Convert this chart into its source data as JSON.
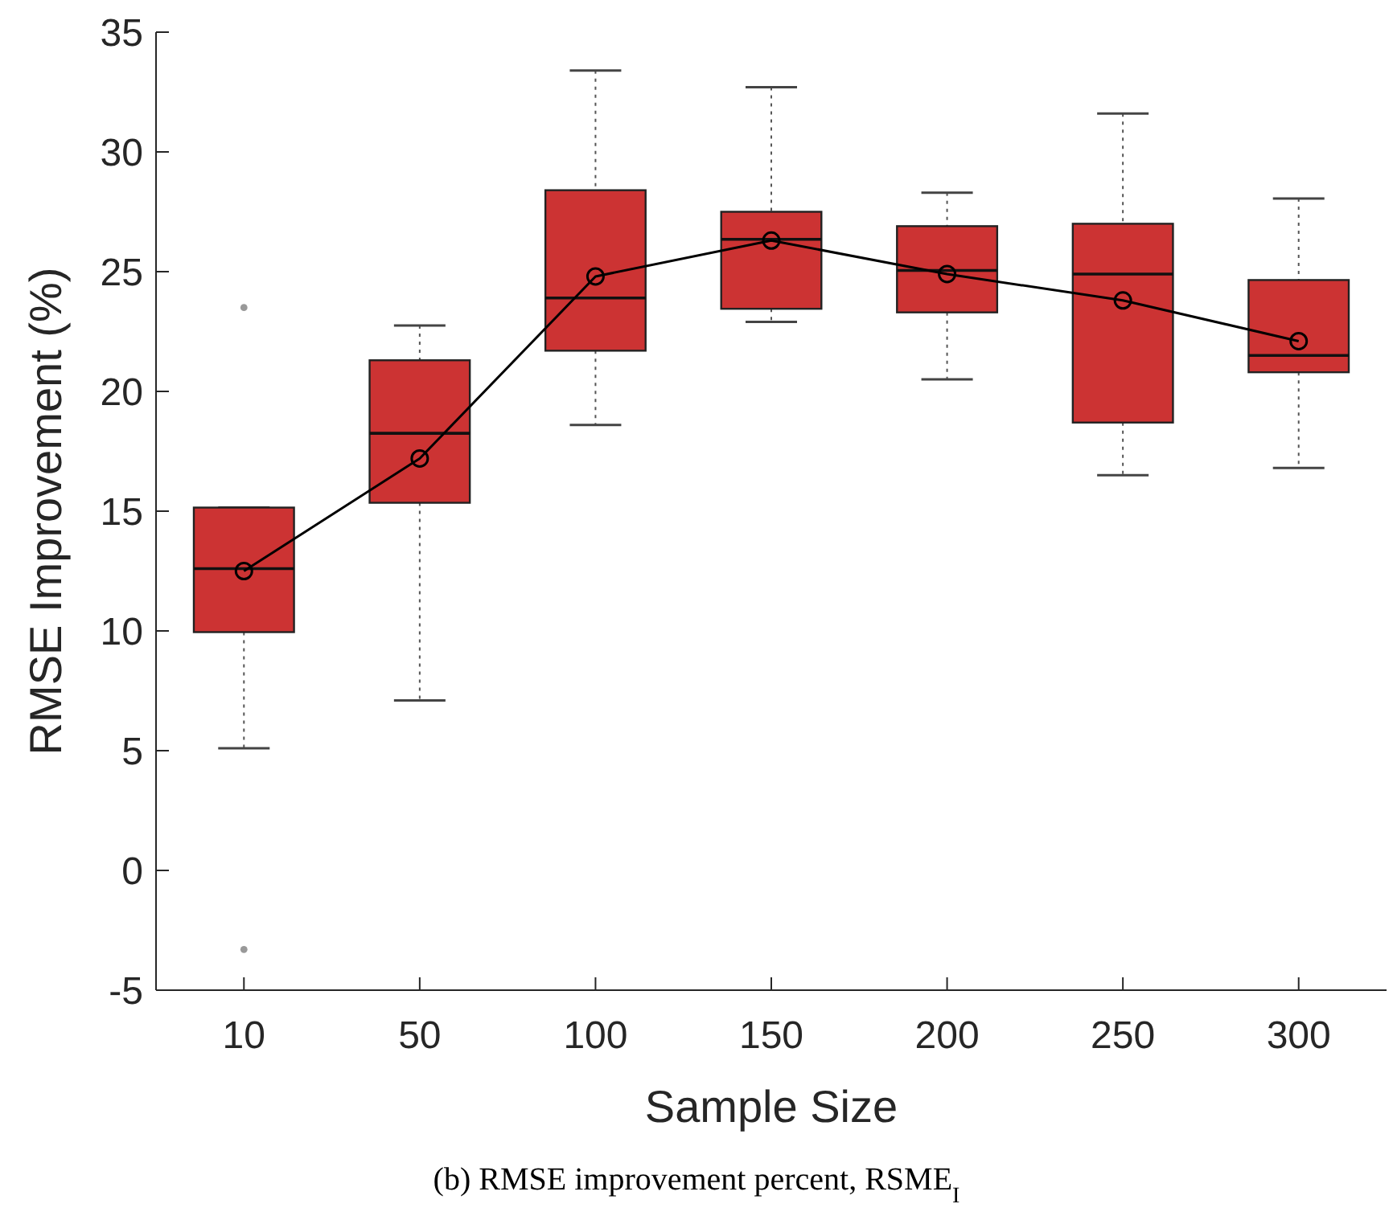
{
  "chart_data": {
    "type": "box",
    "title": "(b) RMSE improvement percent, RSME$_{I}$",
    "xlabel": "Sample Size",
    "ylabel": "RMSE Improvement (%)",
    "categories": [
      "10",
      "50",
      "100",
      "150",
      "200",
      "250",
      "300"
    ],
    "color": "#cc3333",
    "boxes": [
      {
        "low": 5.1,
        "q1": 9.95,
        "median": 12.6,
        "q3": 15.15,
        "high": 15.15,
        "outliers": [
          23.5,
          -3.3
        ]
      },
      {
        "low": 7.1,
        "q1": 15.35,
        "median": 18.25,
        "q3": 21.3,
        "high": 22.75
      },
      {
        "low": 18.6,
        "q1": 21.7,
        "median": 23.9,
        "q3": 28.4,
        "high": 33.4
      },
      {
        "low": 22.9,
        "q1": 23.45,
        "median": 26.35,
        "q3": 27.5,
        "high": 32.7
      },
      {
        "low": 20.5,
        "q1": 23.3,
        "median": 25.05,
        "q3": 26.9,
        "high": 28.3
      },
      {
        "low": 16.5,
        "q1": 18.7,
        "median": 24.9,
        "q3": 27.0,
        "high": 31.6
      },
      {
        "low": 16.8,
        "q1": 20.8,
        "median": 21.5,
        "q3": 24.65,
        "high": 28.05
      }
    ],
    "series": [
      {
        "type": "line",
        "color": "#000000",
        "marker": "circle",
        "values": [
          12.5,
          17.2,
          24.8,
          26.3,
          24.9,
          23.8,
          22.1
        ]
      }
    ],
    "ylim": [
      -5,
      35
    ],
    "yticks": [
      -5,
      0,
      5,
      10,
      15,
      20,
      25,
      30,
      35
    ],
    "grid": false
  }
}
